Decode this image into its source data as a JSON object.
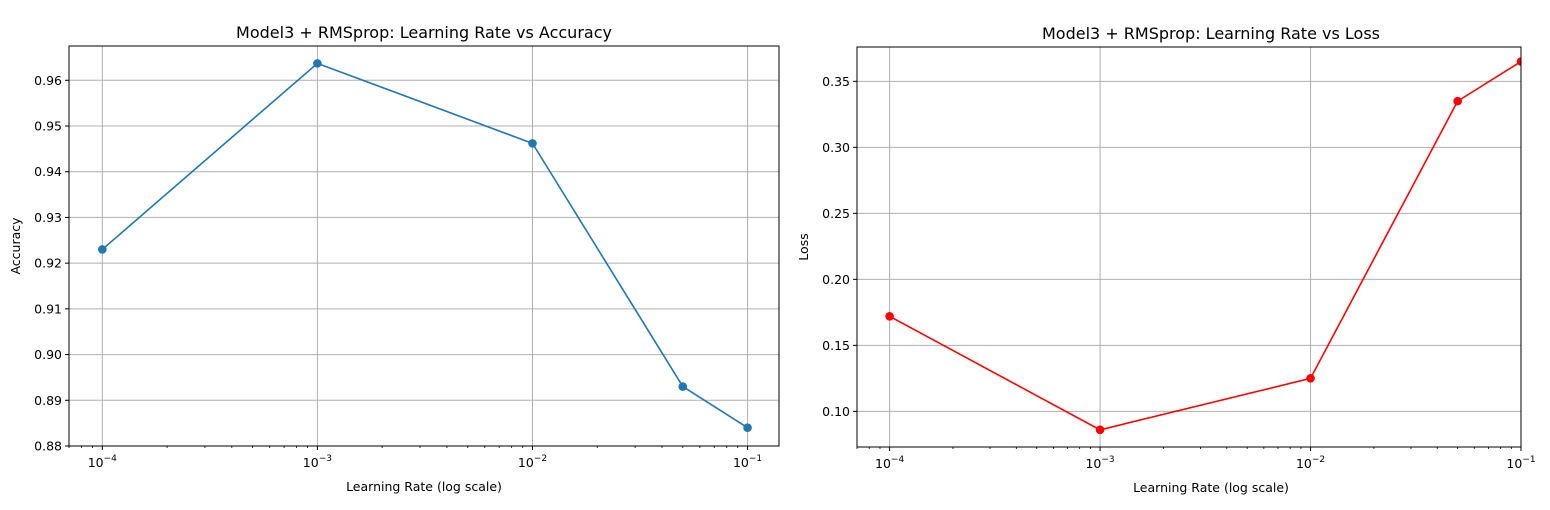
{
  "chart_data": [
    {
      "type": "line",
      "title": "Model3 + RMSprop: Learning Rate vs Accuracy",
      "xlabel": "Learning Rate (log scale)",
      "ylabel": "Accuracy",
      "x_scale": "log",
      "x": [
        0.0001,
        0.001,
        0.01,
        0.05,
        0.1
      ],
      "y": [
        0.923,
        0.9637,
        0.9462,
        0.893,
        0.884
      ],
      "xlim": [
        7e-05,
        0.14
      ],
      "ylim": [
        0.88,
        0.9675
      ],
      "xticks": [
        0.0001,
        0.001,
        0.01,
        0.1
      ],
      "xtick_exponents": [
        "-4",
        "-3",
        "-2",
        "-1"
      ],
      "yticks": [
        0.88,
        0.89,
        0.9,
        0.91,
        0.92,
        0.93,
        0.94,
        0.95,
        0.96
      ],
      "ytick_labels": [
        "0.88",
        "0.89",
        "0.90",
        "0.91",
        "0.92",
        "0.93",
        "0.94",
        "0.95",
        "0.96"
      ],
      "grid": true,
      "color": "#1f77b4",
      "marker": "circle"
    },
    {
      "type": "line",
      "title": "Model3 + RMSprop: Learning Rate vs Loss",
      "xlabel": "Learning Rate (log scale)",
      "ylabel": "Loss",
      "x_scale": "log",
      "x": [
        0.0001,
        0.001,
        0.01,
        0.05,
        0.1
      ],
      "y": [
        0.172,
        0.086,
        0.125,
        0.335,
        0.365
      ],
      "xlim": [
        7e-05,
        0.1
      ],
      "ylim": [
        0.073,
        0.376
      ],
      "xticks": [
        0.0001,
        0.001,
        0.01,
        0.1
      ],
      "xtick_exponents": [
        "-4",
        "-3",
        "-2",
        "-1"
      ],
      "yticks": [
        0.1,
        0.15,
        0.2,
        0.25,
        0.3,
        0.35
      ],
      "ytick_labels": [
        "0.10",
        "0.15",
        "0.20",
        "0.25",
        "0.30",
        "0.35"
      ],
      "grid": true,
      "color": "#ff0000",
      "marker": "circle"
    }
  ]
}
